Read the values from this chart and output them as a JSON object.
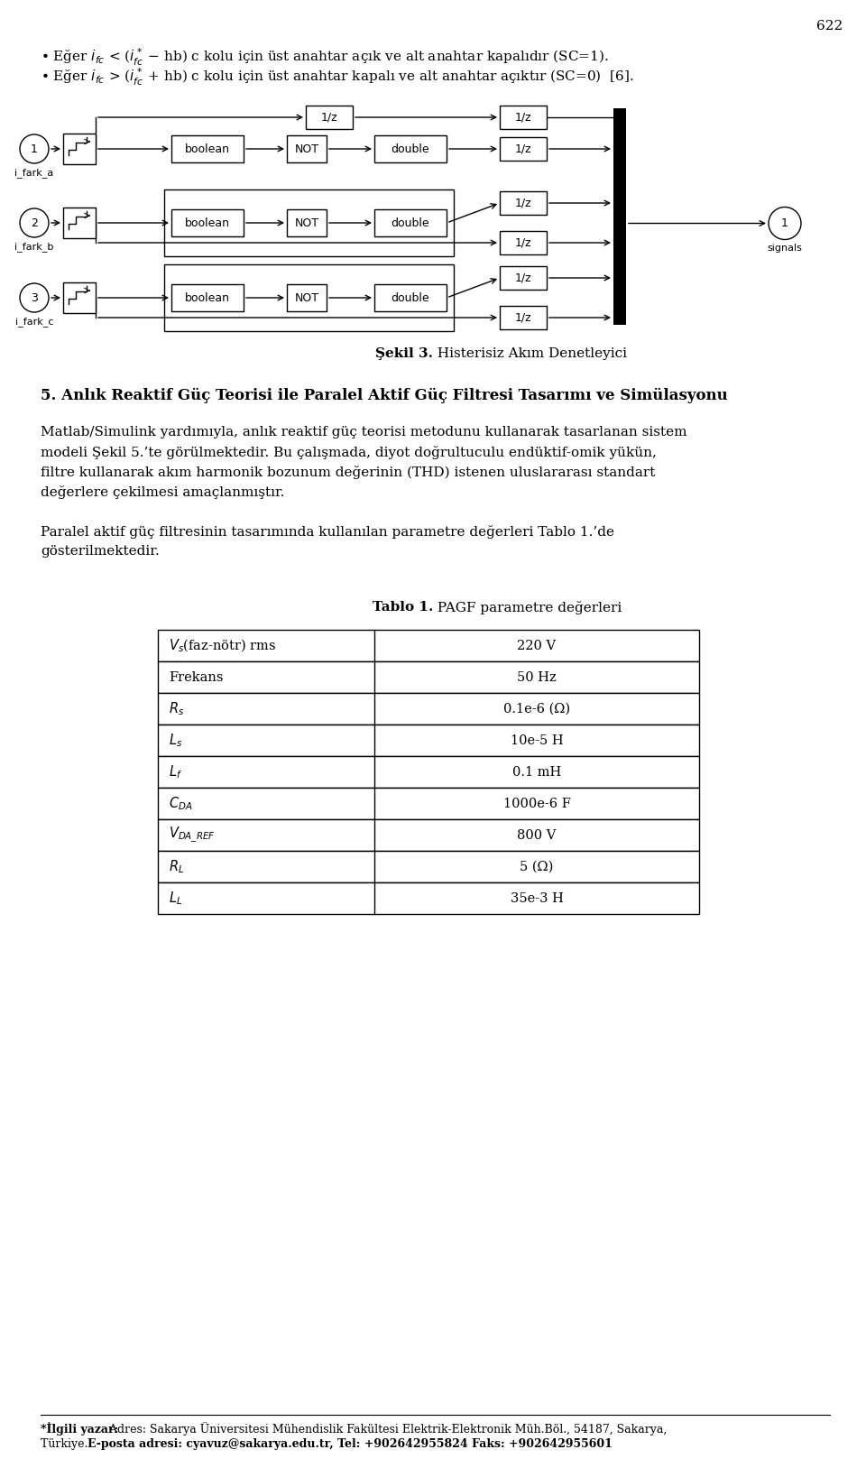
{
  "page_number": "622",
  "bg_color": "#ffffff",
  "text_color": "#000000",
  "figure_caption_bold": "Şekil 3.",
  "figure_caption_normal": " Histerisiz Akım Denetleyici",
  "section_heading": "5. Anlık Reaktif Güç Teorisi ile Paralel Aktif Güç Filtresi Tasarımı ve Simülasyonu",
  "para1_lines": [
    "Matlab/Simulink yardımıyla, anlık reaktif güç teorisi metodunu kullanarak tasarlanan sistem",
    "modeli Şekil 5.’te görülmektedir. Bu çalışmada, diyot doğrultuculu endüktif-omik yükün,",
    "filtre kullanarak akım harmonik bozunum değerinin (THD) istenen uluslararası standart",
    "değerlere çekilmesi amaçlanmıştır."
  ],
  "para2_lines": [
    "Paralel aktif güç filtresinin tasarımında kullanılan parametre değerleri Tablo 1.’de",
    "gösterilmektedir."
  ],
  "table_title_bold": "Tablo 1.",
  "table_title_normal": " PAGF parametre değerleri",
  "table_rows": [
    [
      "V_s(faz-nötr) rms",
      "220 V"
    ],
    [
      "Frekans",
      "50 Hz"
    ],
    [
      "R_s",
      "0.1e-6 (Ω)"
    ],
    [
      "L_s",
      "10e-5 H"
    ],
    [
      "L_f",
      "0.1 mH"
    ],
    [
      "C_DA",
      "1000e-6 F"
    ],
    [
      "V_DA_REF",
      "800 V"
    ],
    [
      "R_L",
      "5 (Ω)"
    ],
    [
      "L_L",
      "35e-3 H"
    ]
  ],
  "footer_line1_bold": "*İlgili yazar:",
  "footer_line1_normal": "  Adres: Sakarya Üniversitesi Mühendislik Fakültesi Elektrik-Elektronik Müh.Böl., 54187, Sakarya,",
  "footer_line2_normal": "Türkiye. ",
  "footer_line2_bold": "E-posta adresi: cyavuz@sakarya.edu.tr, Tel: +902642955824 Faks: +902642955601"
}
